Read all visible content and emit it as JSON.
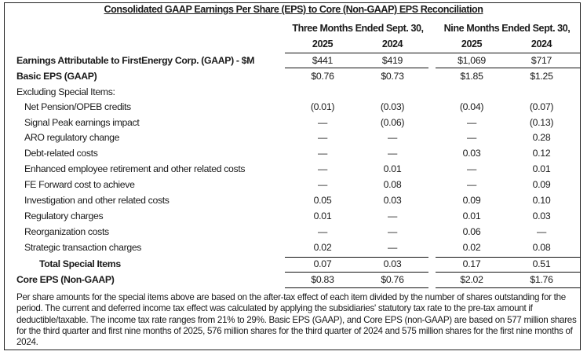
{
  "title": "Consolidated GAAP Earnings Per Share (EPS) to Core (Non-GAAP) EPS Reconciliation",
  "period_headers": [
    {
      "label": "Three Months Ended Sept. 30,",
      "years": [
        "2025",
        "2024"
      ]
    },
    {
      "label": "Nine Months Ended Sept. 30,",
      "years": [
        "2025",
        "2024"
      ]
    }
  ],
  "rows": [
    {
      "label": "Earnings Attributable to FirstEnergy Corp. (GAAP) - $M",
      "values": [
        "$441",
        "$419",
        "$1,069",
        "$717"
      ]
    },
    {
      "label": "Basic EPS (GAAP)",
      "values": [
        "$0.76",
        "$0.73",
        "$1.85",
        "$1.25"
      ]
    },
    {
      "label": "Excluding Special Items:",
      "values": [
        "",
        "",
        "",
        ""
      ]
    },
    {
      "label": "Net Pension/OPEB credits",
      "values": [
        "(0.01)",
        "(0.03)",
        "(0.04)",
        "(0.07)"
      ]
    },
    {
      "label": "Signal Peak earnings impact",
      "values": [
        "—",
        "(0.06)",
        "—",
        "(0.13)"
      ]
    },
    {
      "label": "ARO regulatory change",
      "values": [
        "—",
        "—",
        "—",
        "0.28"
      ]
    },
    {
      "label": "Debt-related costs",
      "values": [
        "—",
        "—",
        "0.03",
        "0.12"
      ]
    },
    {
      "label": "Enhanced employee retirement and other related costs",
      "values": [
        "—",
        "0.01",
        "—",
        "0.01"
      ]
    },
    {
      "label": "FE Forward cost to achieve",
      "values": [
        "—",
        "0.08",
        "—",
        "0.09"
      ]
    },
    {
      "label": "Investigation and other related costs",
      "values": [
        "0.05",
        "0.03",
        "0.09",
        "0.10"
      ]
    },
    {
      "label": "Regulatory charges",
      "values": [
        "0.01",
        "—",
        "0.01",
        "0.03"
      ]
    },
    {
      "label": "Reorganization costs",
      "values": [
        "—",
        "—",
        "0.06",
        "—"
      ]
    },
    {
      "label": "Strategic transaction charges",
      "values": [
        "0.02",
        "—",
        "0.02",
        "0.08"
      ]
    },
    {
      "label": "Total Special Items",
      "values": [
        "0.07",
        "0.03",
        "0.17",
        "0.51"
      ]
    },
    {
      "label": "Core EPS (Non-GAAP)",
      "values": [
        "$0.83",
        "$0.76",
        "$2.02",
        "$1.76"
      ]
    }
  ],
  "footnote": "Per share amounts for the special items above are based on the after-tax effect of each item divided by the number of shares outstanding for the period. The current and deferred income tax effect was calculated by applying the subsidiaries' statutory tax rate to the pre-tax amount if deductible/taxable. The income tax rate ranges from 21% to 29%. Basic EPS (GAAP), and Core EPS (non-GAAP) are based on 577 million shares for the third quarter and first nine months of 2025, 576 million shares for the third quarter of 2024 and 575 million shares for the first nine months of 2024."
}
